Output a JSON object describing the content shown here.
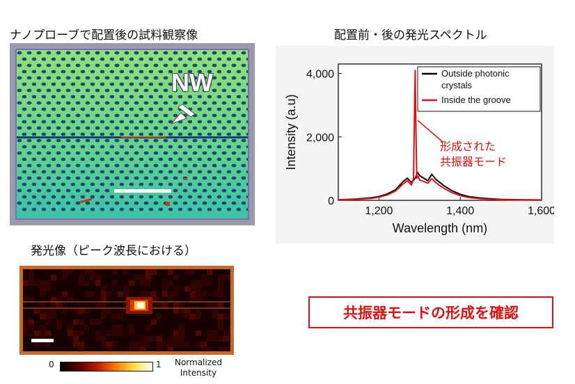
{
  "left_panel": {
    "sem_title": "ナノプローブで配置後の試料観察像",
    "nw_label": "NW",
    "pl_title": "発光像（ピーク波長における）",
    "colorbar": {
      "min_label": "0",
      "max_label": "1",
      "caption_line1": "Normalized",
      "caption_line2": "Intensity"
    }
  },
  "right_panel": {
    "chart_title": "配置前・後の発光スペクトル",
    "annotation_line1": "形成された",
    "annotation_line2": "共振器モード"
  },
  "confirm_text": "共振器モードの形成を確認",
  "colors": {
    "outside": "#000000",
    "inside": "#e01010",
    "accent": "#e01010",
    "frame": "#c66a2a"
  },
  "chart_data": {
    "type": "line",
    "xlabel": "Wavelength (nm)",
    "ylabel": "Intensity (a.u)",
    "xlim": [
      1100,
      1600
    ],
    "ylim": [
      0,
      4300
    ],
    "x_ticks": [
      1200,
      1400,
      1600
    ],
    "x_tick_labels": [
      "1,200",
      "1,400",
      "1,600"
    ],
    "y_ticks": [
      0,
      2000,
      4000
    ],
    "y_tick_labels": [
      "0",
      "2,000",
      "4,000"
    ],
    "legend_position": "top-right",
    "series": [
      {
        "name": "Outside photonic crystals",
        "color": "#000000",
        "x": [
          1100,
          1140,
          1180,
          1200,
          1220,
          1240,
          1260,
          1270,
          1280,
          1290,
          1295,
          1300,
          1310,
          1320,
          1330,
          1340,
          1350,
          1360,
          1380,
          1400,
          1420,
          1450,
          1500,
          1550,
          1600
        ],
        "y": [
          20,
          40,
          80,
          120,
          200,
          330,
          600,
          700,
          560,
          720,
          880,
          780,
          700,
          620,
          820,
          660,
          560,
          460,
          300,
          190,
          120,
          70,
          30,
          20,
          10
        ]
      },
      {
        "name": "Inside the groove",
        "color": "#e01010",
        "x": [
          1100,
          1140,
          1180,
          1200,
          1220,
          1240,
          1260,
          1270,
          1280,
          1285,
          1287,
          1289,
          1291,
          1293,
          1296,
          1300,
          1310,
          1320,
          1330,
          1340,
          1350,
          1360,
          1380,
          1400,
          1420,
          1450,
          1500,
          1550,
          1600
        ],
        "y": [
          15,
          30,
          60,
          100,
          170,
          290,
          520,
          620,
          480,
          700,
          2400,
          4100,
          2300,
          700,
          760,
          640,
          600,
          540,
          680,
          560,
          460,
          380,
          240,
          150,
          90,
          50,
          20,
          10,
          5
        ]
      }
    ]
  }
}
